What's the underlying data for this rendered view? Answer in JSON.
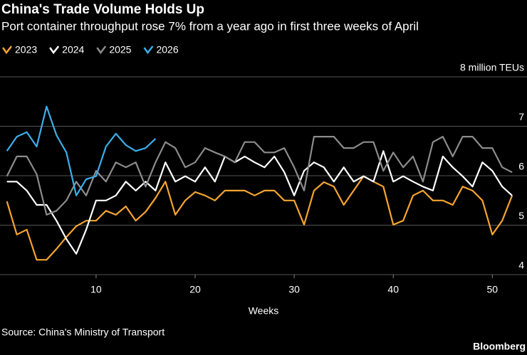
{
  "chart_data": {
    "type": "line",
    "title": "China's Trade Volume Holds Up",
    "subtitle": "Port container throughput rose 7% from a year ago in first three weeks of April",
    "x_label": "Weeks",
    "source": "Source: China's Ministry of Transport",
    "brand": "Bloomberg",
    "x": [
      1,
      2,
      3,
      4,
      5,
      6,
      7,
      8,
      9,
      10,
      11,
      12,
      13,
      14,
      15,
      16,
      17,
      18,
      19,
      20,
      21,
      22,
      23,
      24,
      25,
      26,
      27,
      28,
      29,
      30,
      31,
      32,
      33,
      34,
      35,
      36,
      37,
      38,
      39,
      40,
      41,
      42,
      43,
      44,
      45,
      46,
      47,
      48,
      49,
      50,
      51,
      52
    ],
    "xlim": [
      0.3,
      53.5
    ],
    "xticks": [
      10,
      20,
      30,
      40,
      50
    ],
    "ylim": [
      4,
      8
    ],
    "yticks": [
      4,
      5,
      6,
      7,
      {
        "value": 8,
        "label": "8 million TEUs"
      }
    ],
    "grid": true,
    "series": [
      {
        "name": "2023",
        "color": "#f5a431",
        "values": [
          5.48,
          4.81,
          4.91,
          4.3,
          4.3,
          4.52,
          4.76,
          4.98,
          5.09,
          5.09,
          5.29,
          5.21,
          5.38,
          5.09,
          5.27,
          5.55,
          5.88,
          5.21,
          5.5,
          5.67,
          5.6,
          5.5,
          5.7,
          5.7,
          5.7,
          5.6,
          5.7,
          5.7,
          5.5,
          5.5,
          5.01,
          5.7,
          5.87,
          5.78,
          5.41,
          5.7,
          5.99,
          5.88,
          5.78,
          5.01,
          5.09,
          5.6,
          5.7,
          5.5,
          5.5,
          5.41,
          5.78,
          5.7,
          5.5,
          4.81,
          5.09,
          5.6
        ]
      },
      {
        "name": "2024",
        "color": "#ffffff",
        "values": [
          5.88,
          5.88,
          5.7,
          5.41,
          5.41,
          5.09,
          4.72,
          4.42,
          4.91,
          5.5,
          5.5,
          5.6,
          5.88,
          5.7,
          5.88,
          5.7,
          6.27,
          5.88,
          5.99,
          5.88,
          6.17,
          5.88,
          6.39,
          6.27,
          6.39,
          6.27,
          6.17,
          6.39,
          6.07,
          5.6,
          6.1,
          6.27,
          6.17,
          5.88,
          6.17,
          5.88,
          5.99,
          5.88,
          6.5,
          5.88,
          5.99,
          5.88,
          5.78,
          5.7,
          6.39,
          6.17,
          5.99,
          5.78,
          6.27,
          6.1,
          5.78,
          5.6
        ]
      },
      {
        "name": "2025",
        "color": "#8c8c8c",
        "values": [
          5.99,
          6.39,
          6.39,
          6.03,
          5.21,
          5.29,
          5.5,
          5.88,
          5.6,
          6.1,
          5.88,
          6.27,
          6.17,
          6.27,
          5.78,
          6.27,
          6.68,
          6.56,
          6.17,
          6.27,
          6.56,
          6.47,
          6.39,
          6.27,
          6.68,
          6.68,
          6.47,
          6.47,
          6.56,
          6.17,
          5.7,
          6.79,
          6.79,
          6.79,
          6.56,
          6.56,
          6.68,
          6.68,
          6.1,
          6.47,
          6.17,
          6.39,
          5.88,
          6.68,
          6.79,
          6.39,
          6.79,
          6.79,
          6.56,
          6.56,
          6.17,
          6.07
        ]
      },
      {
        "name": "2026",
        "color": "#3daee9",
        "values": [
          6.5,
          6.79,
          6.88,
          6.59,
          7.4,
          6.82,
          6.47,
          5.6,
          5.93,
          5.99,
          6.59,
          6.85,
          6.62,
          6.5,
          6.56,
          6.75,
          null,
          null,
          null,
          null,
          null,
          null,
          null,
          null,
          null,
          null,
          null,
          null,
          null,
          null,
          null,
          null,
          null,
          null,
          null,
          null,
          null,
          null,
          null,
          null,
          null,
          null,
          null,
          null,
          null,
          null,
          null,
          null,
          null,
          null,
          null,
          null
        ]
      }
    ]
  }
}
